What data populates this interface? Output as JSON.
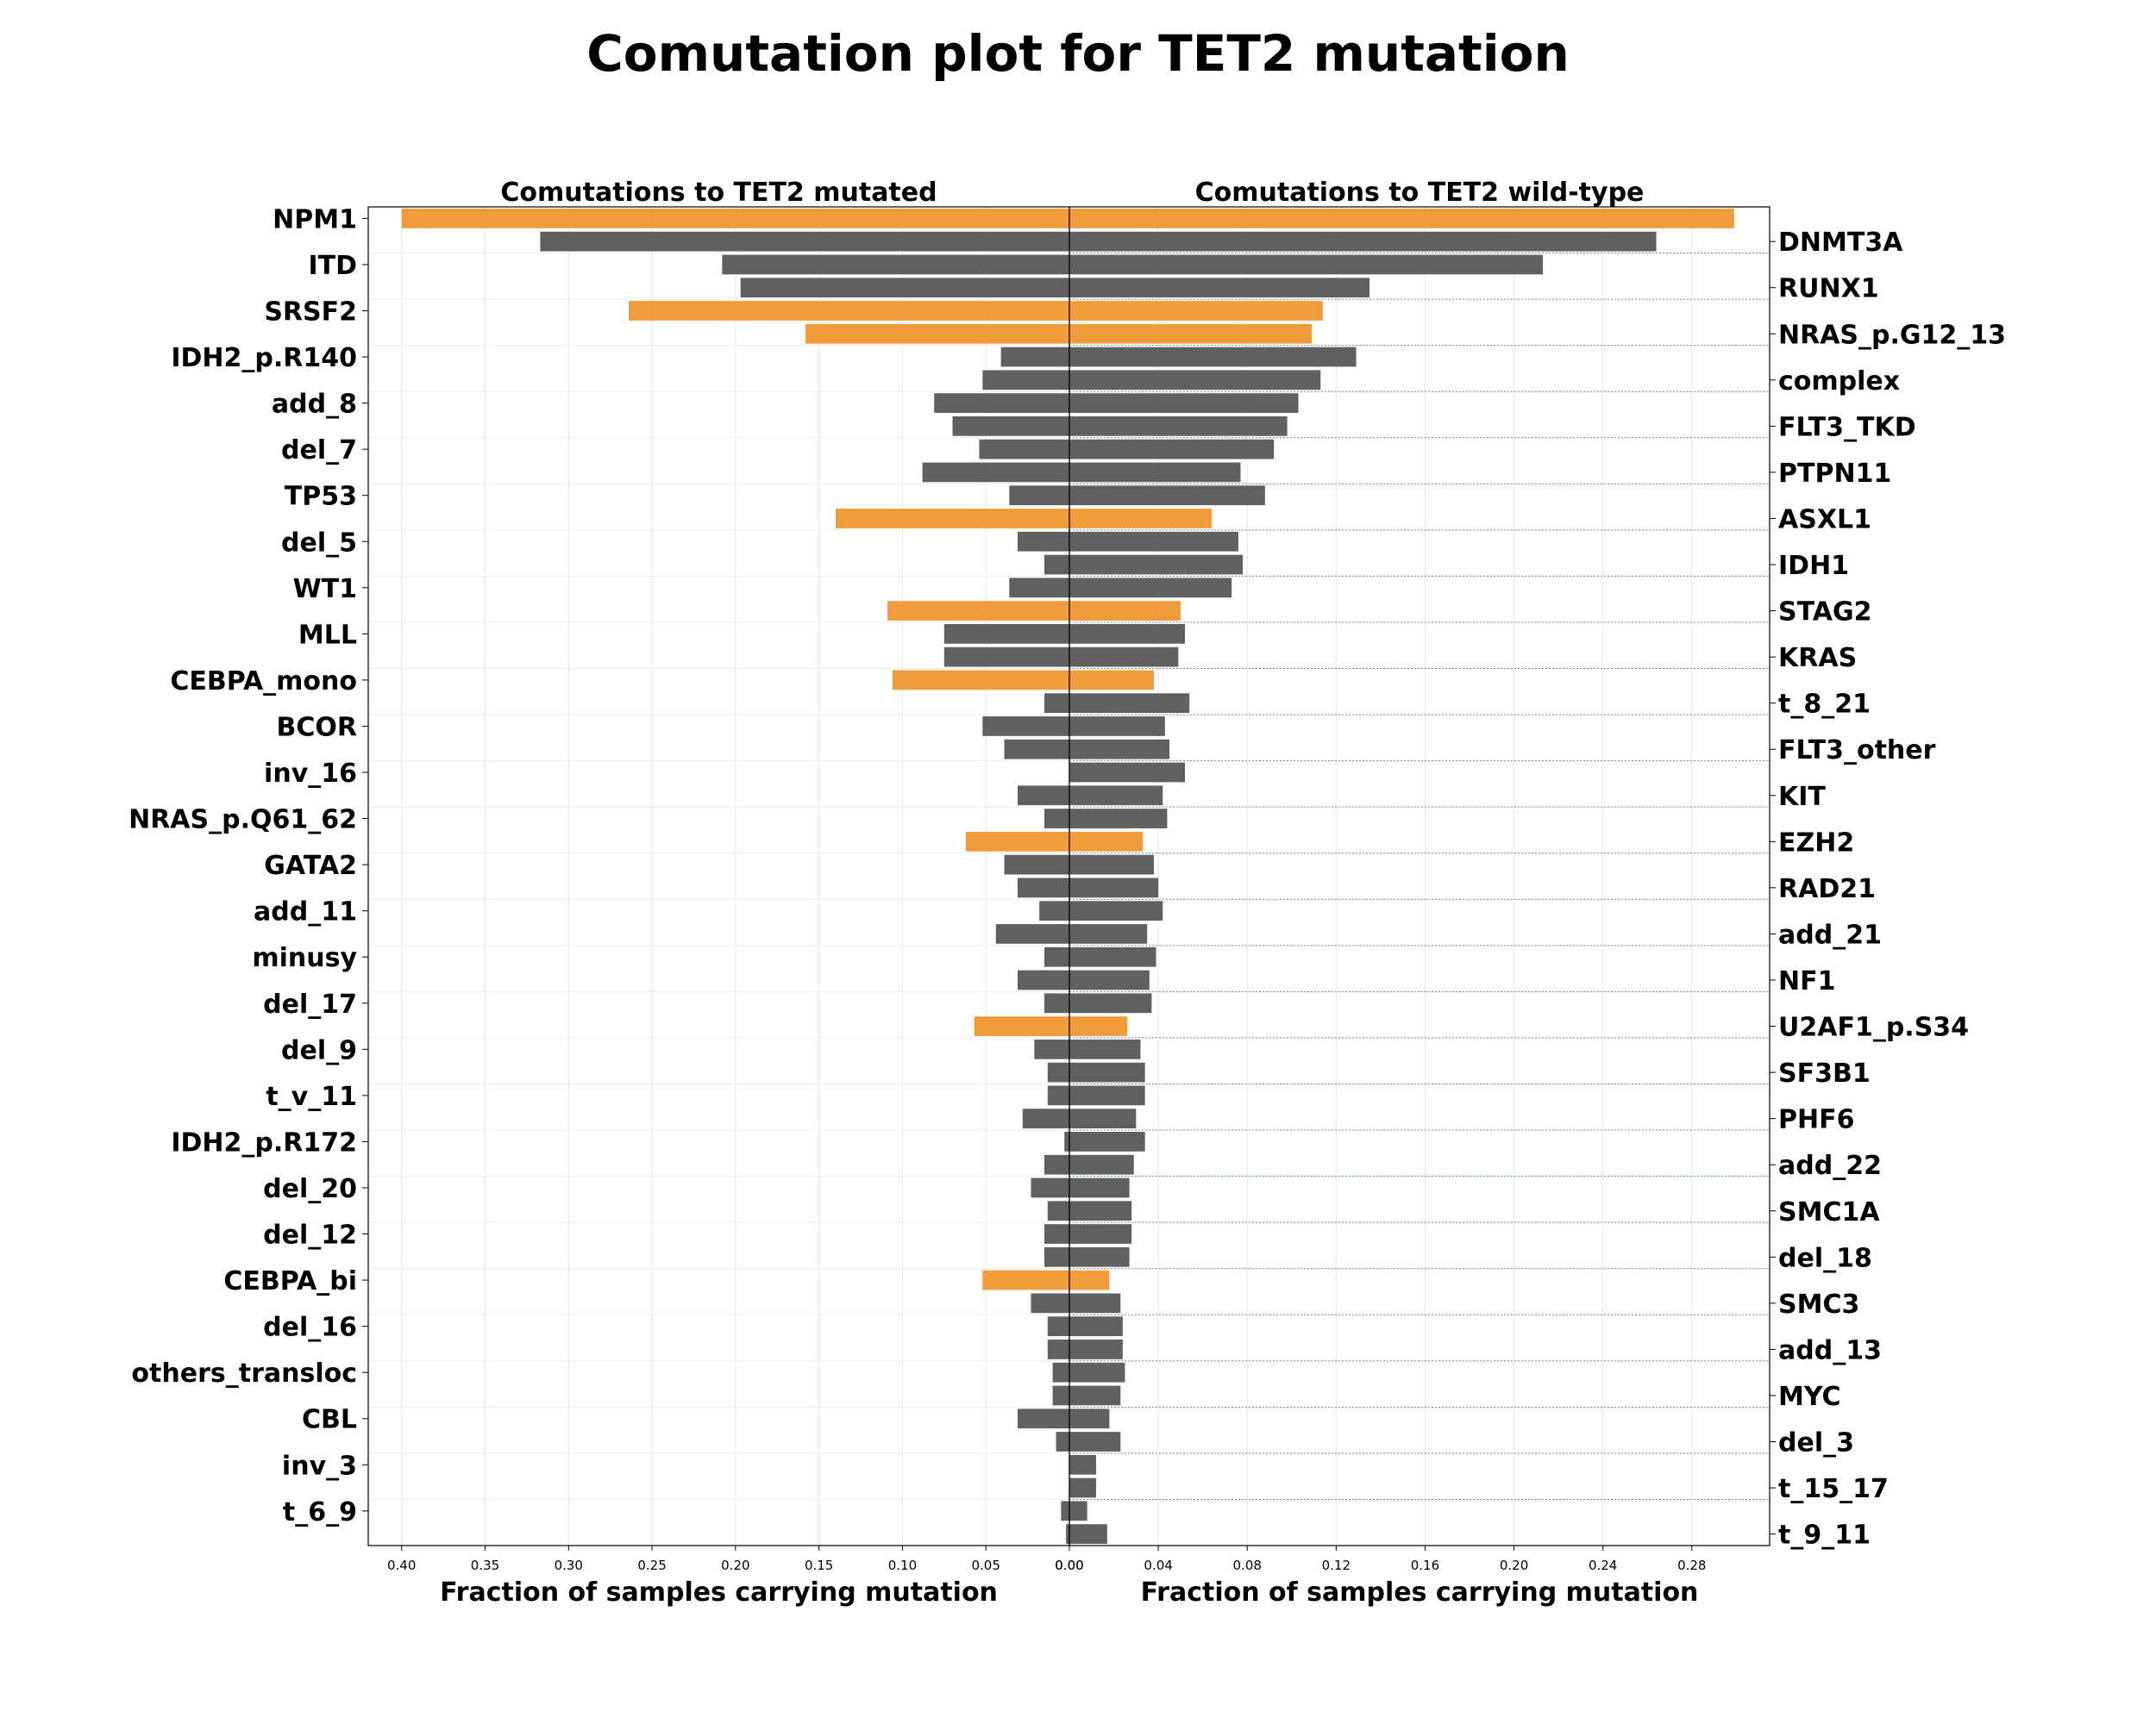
{
  "chart_data": {
    "type": "bar",
    "title": "Comutation plot for TET2 mutation",
    "colors": {
      "highlight": "#f0962f",
      "default": "#575757"
    },
    "genes": [
      "NPM1",
      "DNMT3A",
      "ITD",
      "RUNX1",
      "SRSF2",
      "NRAS_p.G12_13",
      "IDH2_p.R140",
      "complex",
      "add_8",
      "FLT3_TKD",
      "del_7",
      "PTPN11",
      "TP53",
      "ASXL1",
      "del_5",
      "IDH1",
      "WT1",
      "STAG2",
      "MLL",
      "KRAS",
      "CEBPA_mono",
      "t_8_21",
      "BCOR",
      "FLT3_other",
      "inv_16",
      "KIT",
      "NRAS_p.Q61_62",
      "EZH2",
      "GATA2",
      "RAD21",
      "add_11",
      "add_21",
      "minusy",
      "NF1",
      "del_17",
      "U2AF1_p.S34",
      "del_9",
      "SF3B1",
      "t_v_11",
      "PHF6",
      "IDH2_p.R172",
      "add_22",
      "del_20",
      "SMC1A",
      "del_12",
      "del_18",
      "CEBPA_bi",
      "SMC3",
      "del_16",
      "add_13",
      "others_transloc",
      "MYC",
      "CBL",
      "del_3",
      "inv_3",
      "t_15_17",
      "t_6_9",
      "t_9_11"
    ],
    "highlighted": [
      "NPM1",
      "SRSF2",
      "NRAS_p.G12_13",
      "ASXL1",
      "STAG2",
      "CEBPA_mono",
      "EZH2",
      "U2AF1_p.S34",
      "CEBPA_bi"
    ],
    "left_labels": [
      "NPM1",
      "ITD",
      "SRSF2",
      "IDH2_p.R140",
      "add_8",
      "del_7",
      "TP53",
      "del_5",
      "WT1",
      "MLL",
      "CEBPA_mono",
      "BCOR",
      "inv_16",
      "NRAS_p.Q61_62",
      "GATA2",
      "add_11",
      "minusy",
      "del_17",
      "del_9",
      "t_v_11",
      "IDH2_p.R172",
      "del_20",
      "del_12",
      "CEBPA_bi",
      "del_16",
      "others_transloc",
      "CBL",
      "inv_3",
      "t_6_9"
    ],
    "right_labels": [
      "DNMT3A",
      "RUNX1",
      "NRAS_p.G12_13",
      "complex",
      "FLT3_TKD",
      "PTPN11",
      "ASXL1",
      "IDH1",
      "STAG2",
      "KRAS",
      "t_8_21",
      "FLT3_other",
      "KIT",
      "EZH2",
      "RAD21",
      "add_21",
      "NF1",
      "U2AF1_p.S34",
      "SF3B1",
      "PHF6",
      "add_22",
      "SMC1A",
      "del_18",
      "SMC3",
      "add_13",
      "MYC",
      "del_3",
      "t_15_17",
      "t_9_11"
    ],
    "panels": [
      {
        "title": "Comutations to TET2 mutated",
        "xlabel": "Fraction of samples carrying mutation",
        "xlim": [
          0.42,
          0
        ],
        "xticks": [
          0.4,
          0.35,
          0.3,
          0.25,
          0.2,
          0.15,
          0.1,
          0.05,
          0.0
        ],
        "xtick_labels": [
          "0.40",
          "0.35",
          "0.30",
          "0.25",
          "0.20",
          "0.15",
          "0.10",
          "0.05",
          "0.00"
        ],
        "values": [
          0.4,
          0.317,
          0.208,
          0.197,
          0.264,
          0.158,
          0.041,
          0.052,
          0.081,
          0.07,
          0.054,
          0.088,
          0.036,
          0.14,
          0.031,
          0.015,
          0.036,
          0.109,
          0.075,
          0.075,
          0.106,
          0.015,
          0.052,
          0.039,
          0.0,
          0.031,
          0.015,
          0.062,
          0.039,
          0.031,
          0.018,
          0.044,
          0.015,
          0.031,
          0.015,
          0.057,
          0.021,
          0.013,
          0.013,
          0.028,
          0.003,
          0.015,
          0.023,
          0.013,
          0.015,
          0.015,
          0.052,
          0.023,
          0.013,
          0.013,
          0.01,
          0.01,
          0.031,
          0.008,
          0.0,
          0.0,
          0.005,
          0.002
        ]
      },
      {
        "title": "Comutations to TET2 wild-type",
        "xlabel": "Fraction of samples carrying mutation",
        "xlim": [
          0,
          0.315
        ],
        "xticks": [
          0.0,
          0.04,
          0.08,
          0.12,
          0.16,
          0.2,
          0.24,
          0.28
        ],
        "xtick_labels": [
          "0.00",
          "0.04",
          "0.08",
          "0.12",
          "0.16",
          "0.20",
          "0.24",
          "0.28"
        ],
        "values": [
          0.299,
          0.264,
          0.213,
          0.135,
          0.114,
          0.109,
          0.129,
          0.113,
          0.103,
          0.098,
          0.092,
          0.077,
          0.088,
          0.064,
          0.076,
          0.078,
          0.073,
          0.05,
          0.052,
          0.049,
          0.038,
          0.054,
          0.043,
          0.045,
          0.052,
          0.042,
          0.044,
          0.033,
          0.038,
          0.04,
          0.042,
          0.035,
          0.039,
          0.036,
          0.037,
          0.026,
          0.032,
          0.034,
          0.034,
          0.03,
          0.034,
          0.029,
          0.027,
          0.028,
          0.028,
          0.027,
          0.018,
          0.023,
          0.024,
          0.024,
          0.025,
          0.023,
          0.018,
          0.023,
          0.012,
          0.012,
          0.008,
          0.017
        ]
      }
    ]
  }
}
